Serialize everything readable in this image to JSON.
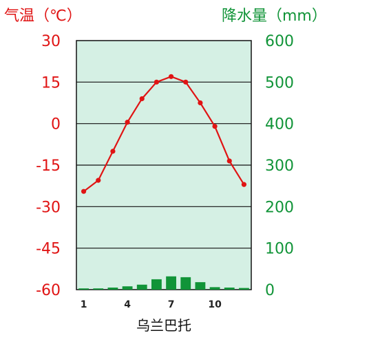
{
  "colors": {
    "temperature": "#e01414",
    "precipitation": "#119438",
    "plot_bg": "#d5f0e4",
    "grid": "#111111"
  },
  "chart_data": {
    "type": "bar",
    "title": "乌兰巴托",
    "x": [
      1,
      2,
      3,
      4,
      5,
      6,
      7,
      8,
      9,
      10,
      11,
      12
    ],
    "x_tick_labels": [
      "1",
      "4",
      "7",
      "10"
    ],
    "x_tick_values": [
      1,
      4,
      7,
      10
    ],
    "left_axis": {
      "label": "气温（℃）",
      "range": [
        -60,
        30
      ],
      "ticks": [
        "30",
        "15",
        "0",
        "-15",
        "-30",
        "-45",
        "-60"
      ],
      "tick_values": [
        30,
        15,
        0,
        -15,
        -30,
        -45,
        -60
      ]
    },
    "right_axis": {
      "label": "降水量（mm）",
      "range": [
        0,
        600
      ],
      "ticks": [
        "600",
        "500",
        "400",
        "300",
        "200",
        "100",
        "0"
      ],
      "tick_values": [
        600,
        500,
        400,
        300,
        200,
        100,
        0
      ]
    },
    "series": [
      {
        "type": "line",
        "axis": "left",
        "values": [
          -24.5,
          -20.5,
          -10,
          0.5,
          9,
          15,
          17,
          15,
          7.5,
          -1,
          -13.5,
          -22
        ]
      },
      {
        "type": "bar",
        "axis": "right",
        "values": [
          3,
          3,
          5,
          8,
          12,
          25,
          32,
          30,
          18,
          6,
          5,
          4
        ]
      }
    ],
    "grid": true
  }
}
